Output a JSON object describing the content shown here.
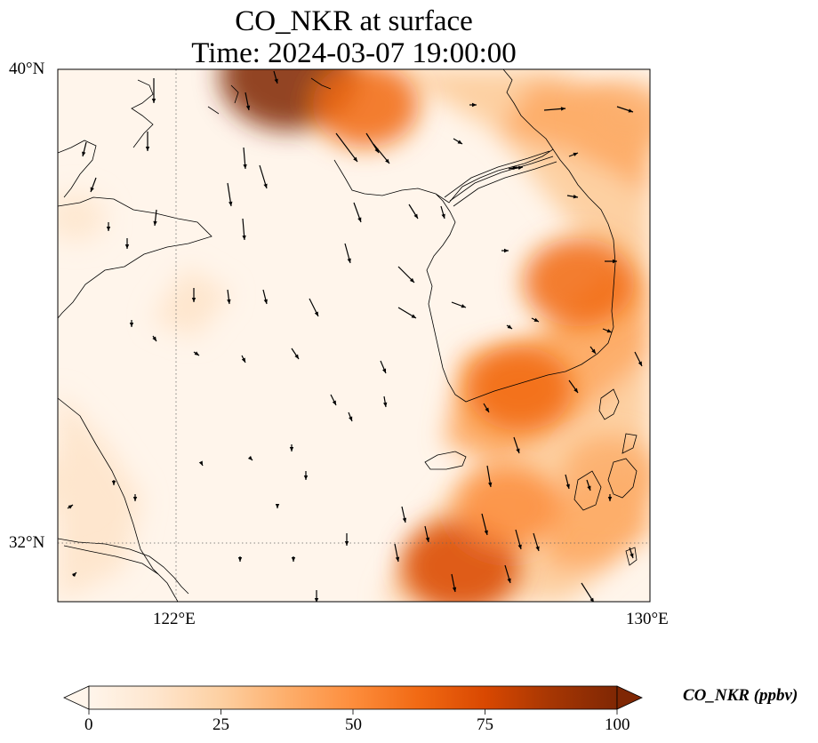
{
  "title": {
    "line1": "CO_NKR at surface",
    "line2": "Time: 2024-03-07 19:00:00"
  },
  "map": {
    "extent": {
      "lon_min": 120,
      "lon_max": 130,
      "lat_min": 31,
      "lat_max": 40
    },
    "lat_ticks": [
      {
        "value": 40,
        "label": "40°N"
      },
      {
        "value": 32,
        "label": "32°N"
      }
    ],
    "lon_ticks": [
      {
        "value": 122,
        "label": "122°E"
      },
      {
        "value": 130,
        "label": "130°E"
      }
    ],
    "gridlines": {
      "lons": [
        122
      ],
      "lats": [
        32
      ],
      "style": "dotted"
    }
  },
  "colorbar": {
    "label": "CO_NKR (ppbv)",
    "min": 0,
    "max": 100,
    "extend": "both",
    "ticks": [
      {
        "value": 0,
        "label": "0"
      },
      {
        "value": 25,
        "label": "25"
      },
      {
        "value": 50,
        "label": "50"
      },
      {
        "value": 75,
        "label": "75"
      },
      {
        "value": 100,
        "label": "100"
      }
    ],
    "colormap": [
      "#fff5eb",
      "#fee6ce",
      "#fdd0a2",
      "#fdae6b",
      "#fd8d3c",
      "#f16913",
      "#d94801",
      "#a63603",
      "#7f2704"
    ]
  },
  "field_hotspots": [
    {
      "lon": 123.9,
      "lat": 39.9,
      "value": 95
    },
    {
      "lon": 125.2,
      "lat": 39.4,
      "value": 60
    },
    {
      "lon": 128.8,
      "lat": 36.4,
      "value": 65
    },
    {
      "lon": 127.8,
      "lat": 34.6,
      "value": 58
    },
    {
      "lon": 126.8,
      "lat": 31.6,
      "value": 72
    },
    {
      "lon": 127.6,
      "lat": 32.6,
      "value": 55
    },
    {
      "lon": 129.6,
      "lat": 39.2,
      "value": 40
    },
    {
      "lon": 129.3,
      "lat": 33.2,
      "value": 42
    },
    {
      "lon": 120.1,
      "lat": 33.0,
      "value": 15
    },
    {
      "lon": 120.3,
      "lat": 37.5,
      "value": 8
    }
  ]
}
